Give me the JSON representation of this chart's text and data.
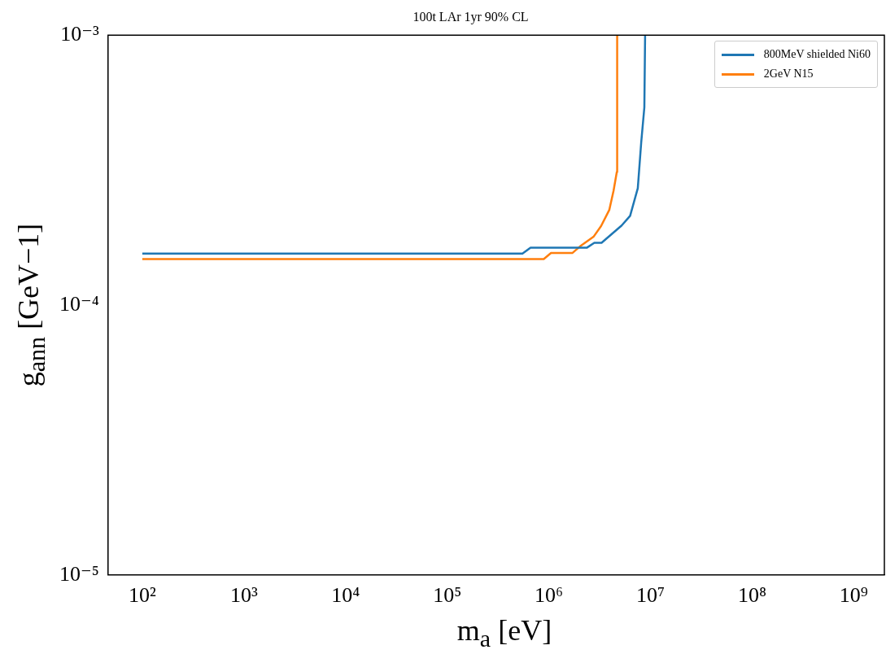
{
  "chart_data": {
    "type": "line",
    "title": "100t LAr 1yr 90% CL",
    "xlabel": "m$_{a}$ [eV]",
    "ylabel": "g$_{ann}$ [GeV−1]",
    "log": "xy",
    "xlim": [
      46,
      2000000000
    ],
    "ylim": [
      1e-05,
      0.001
    ],
    "xticks": [
      {
        "value": 100,
        "label": "10²"
      },
      {
        "value": 1000,
        "label": "10³"
      },
      {
        "value": 10000,
        "label": "10⁴"
      },
      {
        "value": 100000,
        "label": "10⁵"
      },
      {
        "value": 1000000,
        "label": "10⁶"
      },
      {
        "value": 10000000,
        "label": "10⁷"
      },
      {
        "value": 100000000,
        "label": "10⁸"
      },
      {
        "value": 1000000000,
        "label": "10⁹"
      }
    ],
    "yticks": [
      {
        "value": 1e-05,
        "label": "10⁻⁵"
      },
      {
        "value": 0.0001,
        "label": "10⁻⁴"
      },
      {
        "value": 0.001,
        "label": "10⁻³"
      }
    ],
    "grid": false,
    "legend": "top right",
    "marker": "none",
    "line_style": "solid",
    "series": [
      {
        "name": "800MeV shielded Ni60",
        "color": "#1f77b4",
        "x": [
          100,
          550000,
          660000,
          2360000,
          2800000,
          3300000,
          5200000,
          6300000,
          7500000,
          8100000,
          8700000,
          8850000
        ],
        "values": [
          0.000155,
          0.000155,
          0.000163,
          0.000163,
          0.00017,
          0.00017,
          0.000197,
          0.000214,
          0.000271,
          0.0004,
          0.00054,
          0.001
        ]
      },
      {
        "name": "2GeV N15",
        "color": "#ff7f0e",
        "x": [
          100,
          890000,
          1050000,
          1710000,
          2030000,
          2750000,
          3260000,
          3930000,
          4330000,
          4660000,
          4700000
        ],
        "values": [
          0.000148,
          0.000148,
          0.000156,
          0.000156,
          0.000165,
          0.000179,
          0.000196,
          0.000225,
          0.000265,
          0.000311,
          0.001
        ]
      }
    ]
  }
}
